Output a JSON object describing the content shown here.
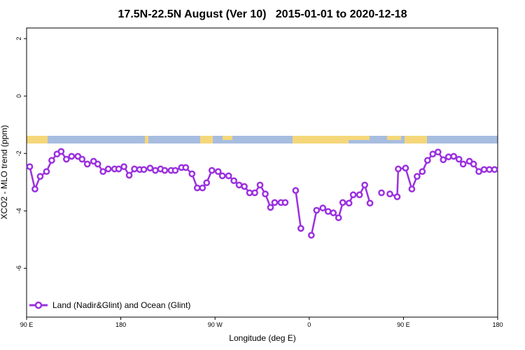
{
  "chart_data": {
    "type": "line",
    "title": "17.5N-22.5N August (Ver 10)   2015-01-01 to 2020-12-18",
    "x_label": "Longitude (deg E)",
    "y_label": "XCO2 - MLO trend (ppm)",
    "xlim": [
      90,
      540
    ],
    "ylim": [
      -7.7,
      2.37
    ],
    "xticks": [
      {
        "value": 90,
        "label": "90 E"
      },
      {
        "value": 180,
        "label": "180"
      },
      {
        "value": 270,
        "label": "90 W"
      },
      {
        "value": 360,
        "label": "0"
      },
      {
        "value": 450,
        "label": "90 E"
      },
      {
        "value": 540,
        "label": "180"
      }
    ],
    "yticks": [
      2,
      0,
      -2,
      -4,
      -6
    ],
    "legend": "bottom-left",
    "series": [
      {
        "name": "Land (Nadir&Glint) and Ocean (Glint)",
        "color": "#9b30e0",
        "x": [
          93,
          98,
          103,
          109,
          114,
          119,
          123,
          128,
          133,
          139,
          143,
          148,
          154,
          158,
          163,
          168,
          174,
          178,
          183,
          188,
          193,
          198,
          202,
          208,
          213,
          218,
          222,
          228,
          232,
          238,
          242,
          248,
          253,
          258,
          262,
          267,
          273,
          277,
          283,
          288,
          293,
          298,
          303,
          308,
          313,
          318,
          323,
          327,
          333,
          337,
          342,
          347,
          352,
          355,
          362,
          367,
          373,
          378,
          383,
          388,
          392,
          398,
          402,
          408,
          413,
          418,
          420,
          429,
          433,
          437,
          444,
          445,
          452,
          458,
          463,
          468,
          473,
          478,
          483,
          488,
          493,
          498,
          503,
          507,
          513,
          517,
          522,
          527,
          532,
          537
        ],
        "values": [
          -2.46,
          -3.24,
          -2.8,
          -2.63,
          -2.24,
          -2.02,
          -1.93,
          -2.2,
          -2.1,
          -2.1,
          -2.2,
          -2.37,
          -2.27,
          -2.37,
          -2.63,
          -2.54,
          -2.54,
          -2.54,
          -2.46,
          -2.76,
          -2.54,
          -2.56,
          -2.56,
          -2.51,
          -2.59,
          -2.54,
          -2.59,
          -2.59,
          -2.59,
          -2.49,
          -2.49,
          -2.71,
          -3.2,
          -3.2,
          -3.02,
          -2.59,
          -2.63,
          -2.78,
          -2.78,
          -2.95,
          -3.1,
          -3.15,
          -3.37,
          -3.37,
          -3.1,
          -3.41,
          -3.88,
          -3.71,
          -3.71,
          -3.71,
          null,
          -3.29,
          -4.61,
          null,
          -4.85,
          -3.98,
          -3.9,
          -4.02,
          -4.07,
          -4.24,
          -3.71,
          -3.73,
          -3.44,
          -3.44,
          -3.1,
          -3.73,
          null,
          -3.37,
          null,
          -3.41,
          -3.51,
          -2.54,
          -2.51,
          -3.24,
          -2.8,
          -2.63,
          -2.24,
          -2.02,
          -1.95,
          -2.22,
          -2.12,
          -2.1,
          -2.2,
          -2.37,
          -2.27,
          -2.37,
          -2.63,
          -2.56,
          -2.56,
          -2.56
        ]
      }
    ]
  }
}
